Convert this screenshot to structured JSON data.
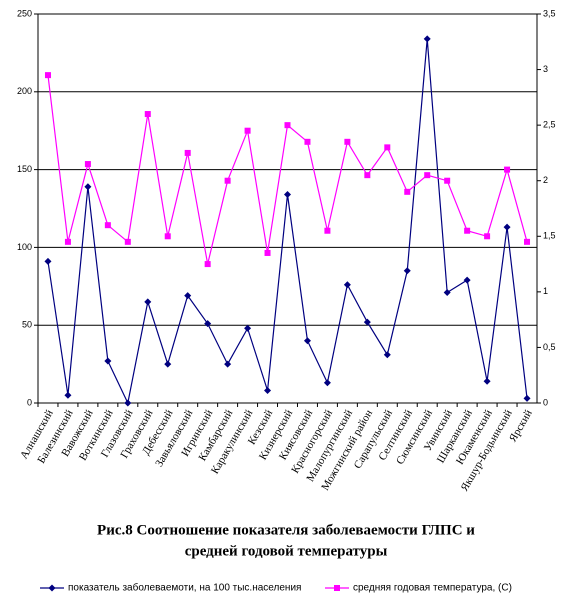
{
  "chart_data": {
    "type": "line",
    "title": [
      "Рис.8   Соотношение показателя заболеваемости ГЛПС и",
      "средней годовой температуры"
    ],
    "categories": [
      "Алнашский",
      "Балезинский",
      "Вавожский",
      "Воткинский",
      "Глазовский",
      "Граховский",
      "Дебесский",
      "Завьяловский",
      "Игринский",
      "Камбарский",
      "Каракулинский",
      "Кезский",
      "Кизнерский",
      "Киясовский",
      "Красногорский",
      "Малопургинский",
      "Можгинский район",
      "Сарапульский",
      "Селтинский",
      "Сюмсинский",
      "Увинский",
      "Шарканский",
      "Юкаменский",
      "Якшур-Бодьинский",
      "Ярский"
    ],
    "series": [
      {
        "name": "показатель заболеваемоти, на 100 тыс.населения",
        "color": "#000080",
        "marker": "diamond",
        "values": [
          91,
          5,
          139,
          27,
          0,
          65,
          25,
          69,
          51,
          25,
          48,
          8,
          134,
          40,
          13,
          76,
          52,
          31,
          85,
          234,
          71,
          79,
          14,
          113,
          3
        ]
      },
      {
        "name": "средняя годовая температура, (С)",
        "color": "#ff00ff",
        "marker": "square",
        "axis": "y2",
        "values": [
          2.95,
          1.45,
          2.15,
          1.6,
          1.45,
          2.6,
          1.5,
          2.25,
          1.25,
          2.0,
          2.45,
          1.35,
          2.5,
          2.35,
          1.55,
          2.35,
          2.05,
          2.3,
          1.9,
          2.05,
          2.0,
          1.55,
          1.5,
          2.1,
          1.45
        ]
      }
    ],
    "ylim": [
      0,
      250
    ],
    "yticks": [
      0,
      50,
      100,
      150,
      200,
      250
    ],
    "y2lim": [
      0,
      3.5
    ],
    "y2ticks": [
      0,
      {
        "value": 0.5,
        "label": "0,5"
      },
      1,
      {
        "value": 1.5,
        "label": "1,5"
      },
      2,
      {
        "value": 2.5,
        "label": "2,5"
      },
      3,
      {
        "value": 3.5,
        "label": "3,5"
      }
    ],
    "grid": true,
    "legend": "bottom"
  }
}
